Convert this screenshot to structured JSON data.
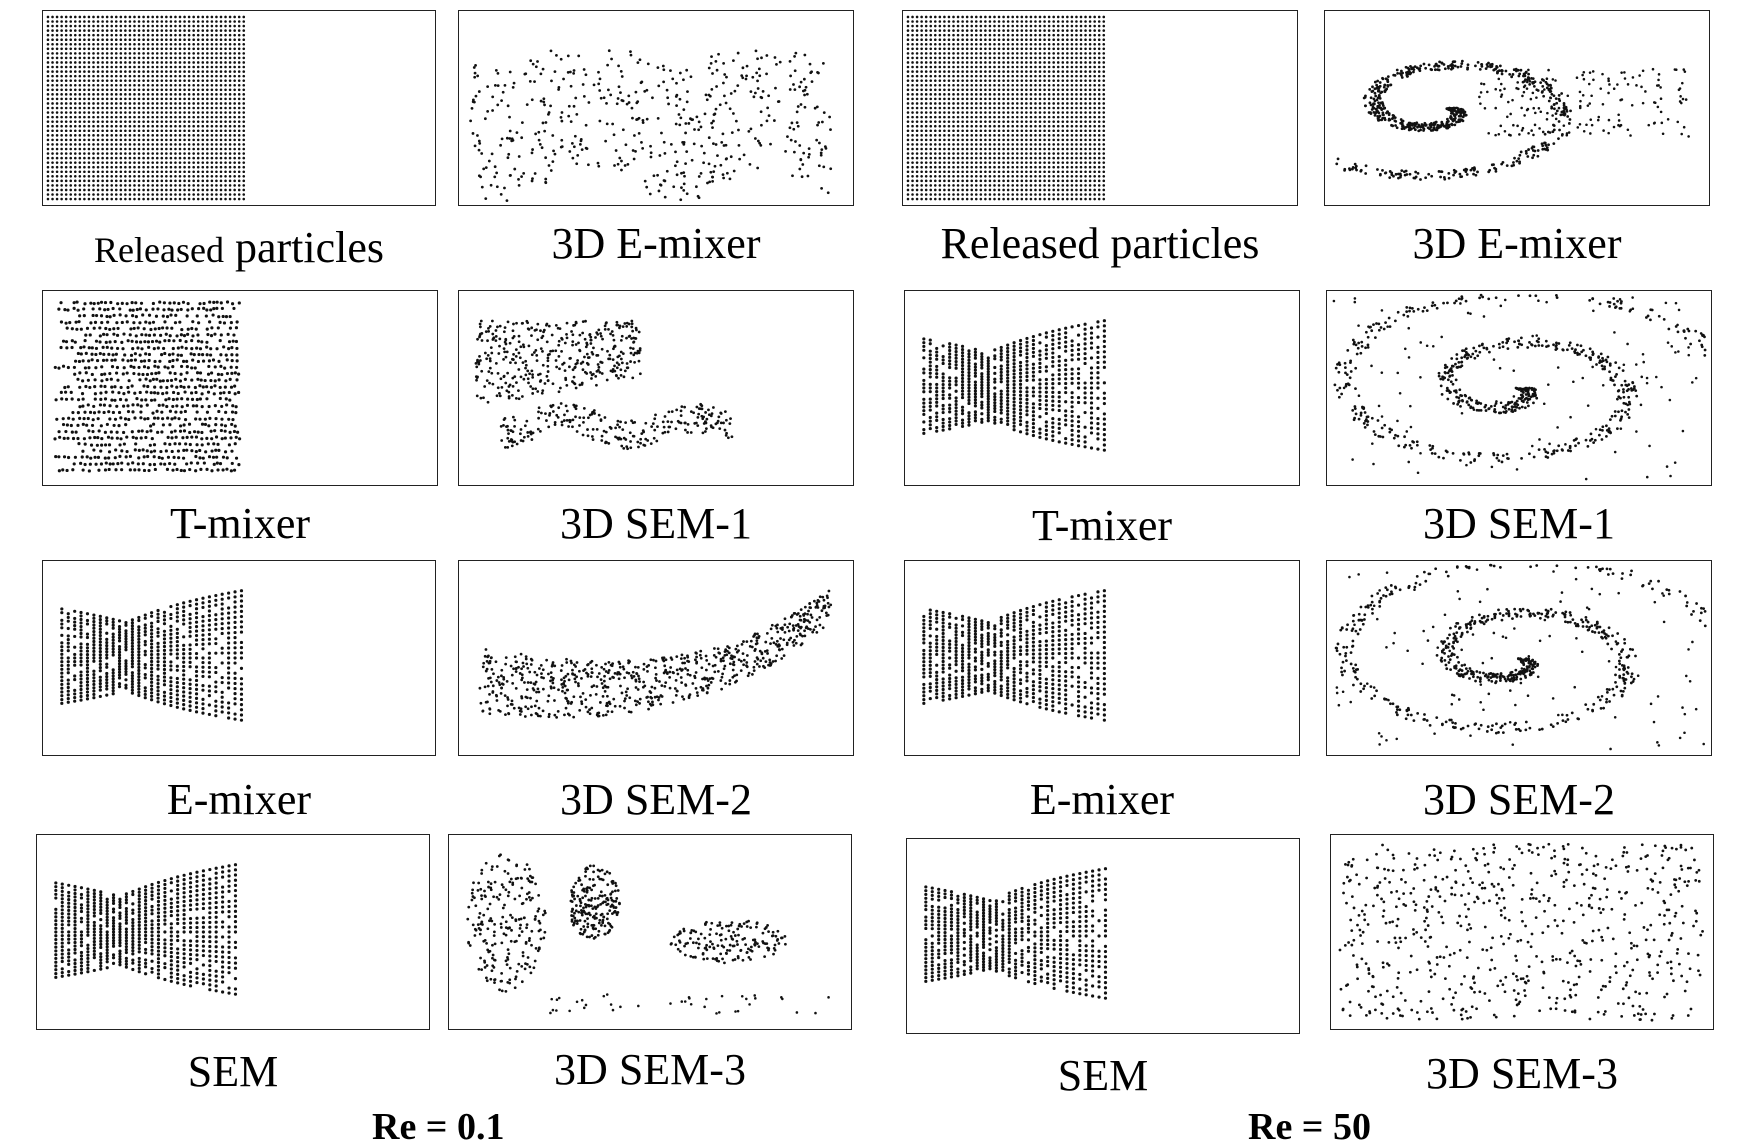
{
  "left_group": {
    "label": "Re = 0.1",
    "panels": [
      {
        "id": "released",
        "caption_a": "Released",
        "caption_b": "particles",
        "pattern": "grid"
      },
      {
        "id": "3d-e-mixer",
        "caption": "3D E-mixer",
        "pattern": "wavy-cloud"
      },
      {
        "id": "t-mixer",
        "caption": "T-mixer",
        "pattern": "horizontal-streaks"
      },
      {
        "id": "3d-sem-1",
        "caption": "3D SEM-1",
        "pattern": "bands"
      },
      {
        "id": "e-mixer",
        "caption": "E-mixer",
        "pattern": "fan-lines"
      },
      {
        "id": "3d-sem-2",
        "caption": "3D SEM-2",
        "pattern": "arc-band"
      },
      {
        "id": "sem",
        "caption": "SEM",
        "pattern": "fan-lines"
      },
      {
        "id": "3d-sem-3",
        "caption": "3D SEM-3",
        "pattern": "clusters"
      }
    ]
  },
  "right_group": {
    "label": "Re = 50",
    "panels": [
      {
        "id": "released",
        "caption": "Released particles",
        "pattern": "grid"
      },
      {
        "id": "3d-e-mixer",
        "caption": "3D E-mixer",
        "pattern": "swirl"
      },
      {
        "id": "t-mixer",
        "caption": "T-mixer",
        "pattern": "fan-lines"
      },
      {
        "id": "3d-sem-1",
        "caption": "3D SEM-1",
        "pattern": "spiral"
      },
      {
        "id": "e-mixer",
        "caption": "E-mixer",
        "pattern": "fan-lines"
      },
      {
        "id": "3d-sem-2",
        "caption": "3D SEM-2",
        "pattern": "spiral"
      },
      {
        "id": "sem",
        "caption": "SEM",
        "pattern": "fan-lines"
      },
      {
        "id": "3d-sem-3",
        "caption": "3D SEM-3",
        "pattern": "scatter"
      }
    ]
  },
  "colors": {
    "dot": "#111111",
    "border": "#222222",
    "background": "#ffffff"
  }
}
